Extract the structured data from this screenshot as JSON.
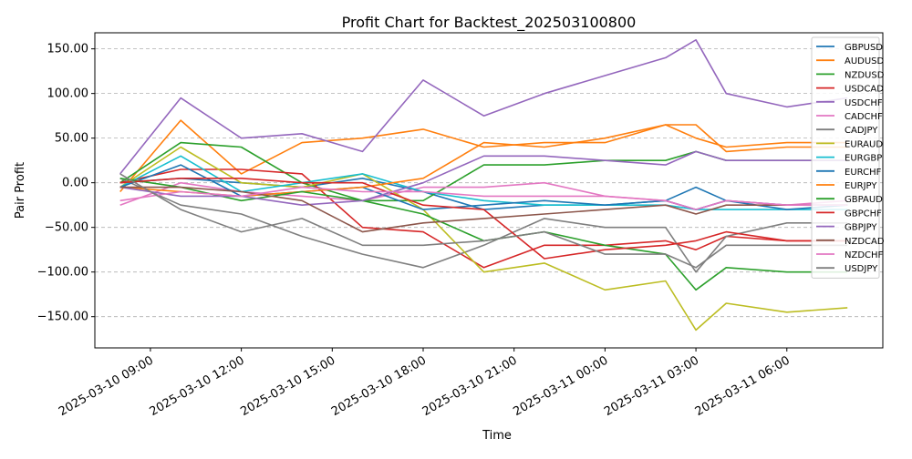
{
  "chart_data": {
    "type": "line",
    "title": "Profit Chart for Backtest_202503100800",
    "xlabel": "Time",
    "ylabel": "Pair Profit",
    "ylim": [
      -185,
      168
    ],
    "xlim": [
      "2025-03-10 07:10",
      "2025-03-11 09:10"
    ],
    "grid": "y-dashed",
    "legend_position": "top-right",
    "y_ticks": [
      150,
      100,
      50,
      0,
      -50,
      -100,
      -150
    ],
    "y_tick_labels": [
      "150.00",
      "100.00",
      "50.00",
      "0.00",
      "−50.00",
      "−100.00",
      "−150.00"
    ],
    "x_ticks": [
      "2025-03-10 09:00",
      "2025-03-10 12:00",
      "2025-03-10 15:00",
      "2025-03-10 18:00",
      "2025-03-10 21:00",
      "2025-03-11 00:00",
      "2025-03-11 03:00",
      "2025-03-11 06:00"
    ],
    "x_tick_labels": [
      "2025-03-10 09:00",
      "2025-03-10 12:00",
      "2025-03-10 15:00",
      "2025-03-10 18:00",
      "2025-03-10 21:00",
      "2025-03-11 00:00",
      "2025-03-11 03:00",
      "2025-03-11 06:00"
    ],
    "x": [
      "2025-03-10 08:00",
      "2025-03-10 10:00",
      "2025-03-10 12:00",
      "2025-03-10 14:00",
      "2025-03-10 16:00",
      "2025-03-10 18:00",
      "2025-03-10 20:00",
      "2025-03-10 22:00",
      "2025-03-11 00:00",
      "2025-03-11 02:00",
      "2025-03-11 03:00",
      "2025-03-11 04:00",
      "2025-03-11 06:00",
      "2025-03-11 08:00"
    ],
    "series": [
      {
        "name": "GBPUSD",
        "color": "#1f77b4",
        "values": [
          0,
          5,
          0,
          -5,
          5,
          -10,
          -30,
          -25,
          -25,
          -20,
          -5,
          -20,
          -25,
          -25
        ]
      },
      {
        "name": "AUDUSD",
        "color": "#ff7f0e",
        "values": [
          -10,
          70,
          10,
          45,
          50,
          60,
          40,
          45,
          45,
          65,
          65,
          35,
          40,
          40
        ]
      },
      {
        "name": "NZDUSD",
        "color": "#2ca02c",
        "values": [
          0,
          45,
          40,
          0,
          -20,
          -20,
          20,
          20,
          25,
          25,
          35,
          25,
          25,
          25
        ]
      },
      {
        "name": "USDCAD",
        "color": "#d62728",
        "values": [
          0,
          15,
          15,
          10,
          -50,
          -55,
          -95,
          -70,
          -70,
          -65,
          -75,
          -60,
          -65,
          -65
        ]
      },
      {
        "name": "USDCHF",
        "color": "#9467bd",
        "values": [
          10,
          95,
          50,
          55,
          35,
          115,
          75,
          100,
          120,
          140,
          160,
          100,
          85,
          95
        ]
      },
      {
        "name": "CADCHF",
        "color": "#e377c2",
        "values": [
          -25,
          0,
          -10,
          -15,
          -20,
          -5,
          -5,
          0,
          -15,
          -20,
          -30,
          -20,
          -25,
          -20
        ]
      },
      {
        "name": "CADJPY",
        "color": "#7f7f7f",
        "values": [
          5,
          -25,
          -35,
          -60,
          -80,
          -95,
          -70,
          -40,
          -50,
          -50,
          -100,
          -60,
          -45,
          -45
        ]
      },
      {
        "name": "EURAUD",
        "color": "#bcbd22",
        "values": [
          -5,
          40,
          0,
          -5,
          10,
          -30,
          -100,
          -90,
          -120,
          -110,
          -165,
          -135,
          -145,
          -140
        ]
      },
      {
        "name": "EURGBP",
        "color": "#17becf",
        "values": [
          -5,
          30,
          -10,
          0,
          10,
          -10,
          -20,
          -25,
          -25,
          -25,
          -30,
          -30,
          -30,
          -30
        ]
      },
      {
        "name": "EURCHF",
        "color": "#1f77b4",
        "values": [
          -5,
          20,
          -15,
          -10,
          -5,
          -30,
          -25,
          -20,
          -25,
          -20,
          -30,
          -20,
          -30,
          -25
        ]
      },
      {
        "name": "EURJPY",
        "color": "#ff7f0e",
        "values": [
          -5,
          -10,
          -15,
          -10,
          -5,
          5,
          45,
          40,
          50,
          65,
          50,
          40,
          45,
          45
        ]
      },
      {
        "name": "GBPAUD",
        "color": "#2ca02c",
        "values": [
          5,
          -5,
          -20,
          -10,
          -20,
          -35,
          -65,
          -55,
          -70,
          -80,
          -120,
          -95,
          -100,
          -100
        ]
      },
      {
        "name": "GBPCHF",
        "color": "#d62728",
        "values": [
          0,
          5,
          5,
          0,
          0,
          -25,
          -30,
          -85,
          -75,
          -70,
          -65,
          -55,
          -65,
          -65
        ]
      },
      {
        "name": "GBPJPY",
        "color": "#9467bd",
        "values": [
          -5,
          -15,
          -15,
          -25,
          -20,
          0,
          30,
          30,
          25,
          20,
          35,
          25,
          25,
          25
        ]
      },
      {
        "name": "NZDCAD",
        "color": "#8c564b",
        "values": [
          -5,
          -5,
          -10,
          -20,
          -55,
          -45,
          -40,
          -35,
          -30,
          -25,
          -35,
          -25,
          -25,
          -25
        ]
      },
      {
        "name": "NZDCHF",
        "color": "#e377c2",
        "values": [
          -20,
          -10,
          -15,
          -5,
          -10,
          -10,
          -15,
          -15,
          -15,
          -20,
          -30,
          -20,
          -25,
          -25
        ]
      },
      {
        "name": "USDJPY",
        "color": "#7f7f7f",
        "values": [
          10,
          -30,
          -55,
          -40,
          -70,
          -70,
          -65,
          -55,
          -80,
          -80,
          -95,
          -70,
          -70,
          -70
        ]
      }
    ]
  }
}
